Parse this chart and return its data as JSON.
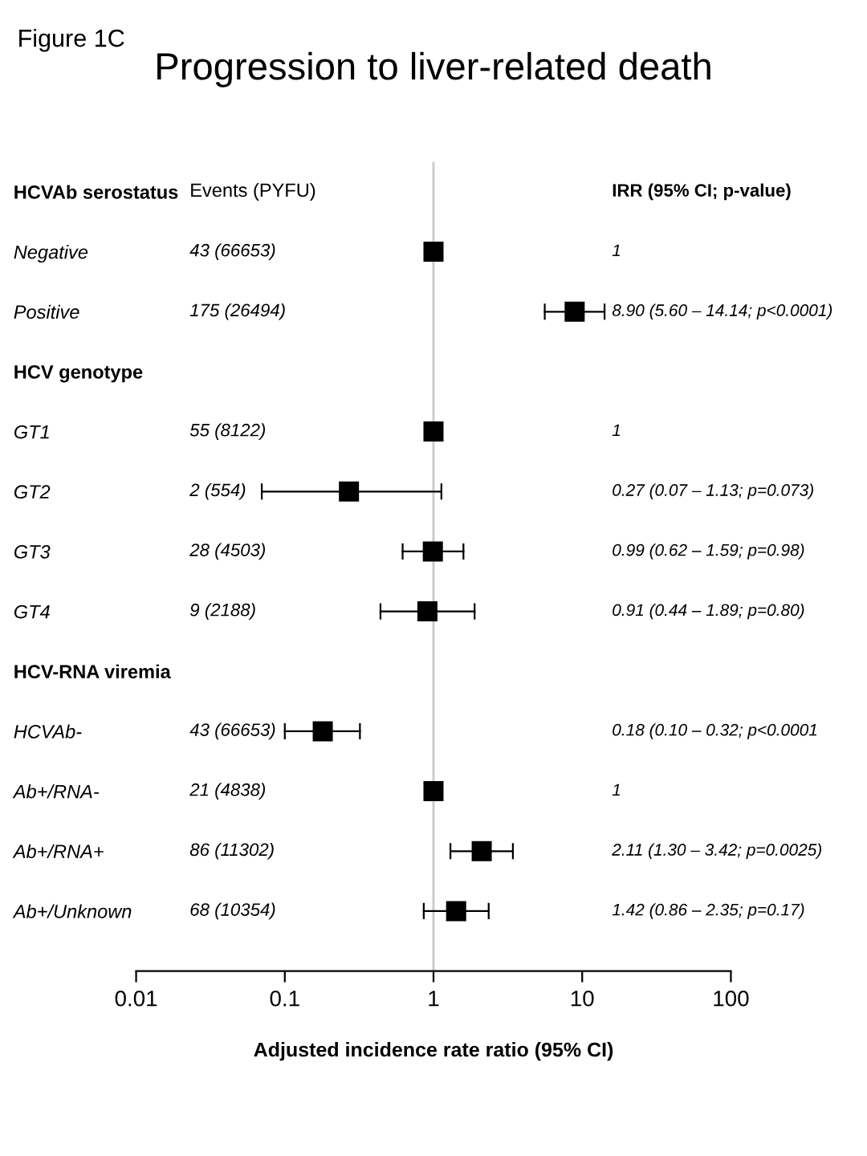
{
  "chart_data": {
    "type": "scatter",
    "orientation": "horizontal",
    "title": "Progression to liver-related death",
    "xlabel": "Adjusted incidence rate ratio (95% CI)",
    "categories": [
      "HCVAb serostatus",
      "Negative",
      "Positive",
      "HCV genotype",
      "GT1",
      "GT2",
      "GT3",
      "GT4",
      "HCV-RNA viremia",
      "HCVAb-",
      "Ab+/RNA-",
      "Ab+/RNA+",
      "Ab+/Unknown"
    ],
    "series": [
      {
        "color": "#000000",
        "values": [
          null,
          1,
          8.9,
          null,
          1,
          0.27,
          0.99,
          0.91,
          null,
          0.18,
          1,
          2.11,
          1.42
        ],
        "errors": [
          null,
          null,
          [
            5.6,
            14.14
          ],
          null,
          null,
          [
            0.07,
            1.13
          ],
          [
            0.62,
            1.59
          ],
          [
            0.44,
            1.89
          ],
          null,
          [
            0.1,
            0.32
          ],
          null,
          [
            1.3,
            3.42
          ],
          [
            0.86,
            2.35
          ]
        ]
      }
    ],
    "log": "x",
    "xlim": [
      0.01,
      100
    ],
    "xticks": [
      0.01,
      0.1,
      1,
      10,
      100
    ],
    "marker": "square",
    "grid": false,
    "legend": false,
    "ref_lines": [
      {
        "axis": "x",
        "value": 1,
        "color": "#c8c8c8"
      }
    ],
    "annotations": [
      "Figure 1C",
      "Events (PYFU)",
      "IRR (95% CI; p-value)",
      "43 (66653)",
      "175 (26494)",
      "55 (8122)",
      "2 (554)",
      "28 (4503)",
      "9 (2188)",
      "43 (66653)",
      "21 (4838)",
      "86 (11302)",
      "68 (10354)",
      "1",
      "8.90 (5.60 – 14.14; p<0.0001)",
      "1",
      "0.27 (0.07 – 1.13; p=0.073)",
      "0.99 (0.62 – 1.59; p=0.98)",
      "0.91 (0.44 – 1.89; p=0.80)",
      "0.18 (0.10 – 0.32; p<0.0001",
      "1",
      "2.11 (1.30 – 3.42; p=0.0025)",
      "1.42 (0.86 – 2.35; p=0.17)"
    ]
  }
}
